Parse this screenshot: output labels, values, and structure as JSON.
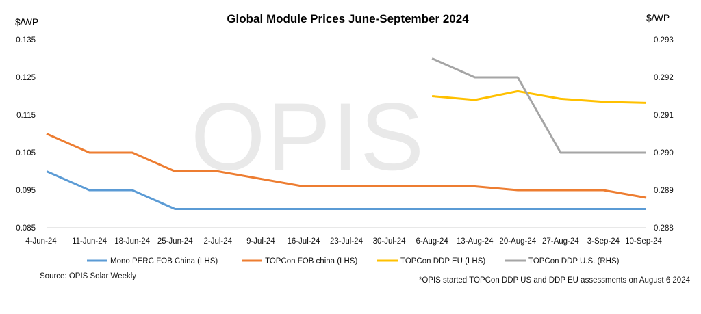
{
  "chart_data": {
    "type": "line",
    "title": "Global Module Prices  June-September 2024",
    "y_left_label": "$/WP",
    "y_right_label": "$/WP",
    "watermark": "OPIS",
    "source": "Source: OPIS Solar Weekly",
    "footnote": "*OPIS started TOPCon DDP US and DDP EU assessments on August 6 2024",
    "grid": false,
    "legend_position": "bottom",
    "categories": [
      "4-Jun-24",
      "11-Jun-24",
      "18-Jun-24",
      "25-Jun-24",
      "2-Jul-24",
      "9-Jul-24",
      "16-Jul-24",
      "23-Jul-24",
      "30-Jul-24",
      "6-Aug-24",
      "13-Aug-24",
      "20-Aug-24",
      "27-Aug-24",
      "3-Sep-24",
      "10-Sep-24"
    ],
    "ylim_left": [
      0.085,
      0.135
    ],
    "ylim_right": [
      0.288,
      0.293
    ],
    "yticks_left": [
      "0.085",
      "0.095",
      "0.105",
      "0.115",
      "0.125",
      "0.135"
    ],
    "yticks_right": [
      "0.288",
      "0.289",
      "0.290",
      "0.291",
      "0.292",
      "0.293"
    ],
    "series": [
      {
        "name": "Mono PERC FOB China (LHS)",
        "axis": "left",
        "color": "#5B9BD5",
        "values": [
          0.1,
          0.095,
          0.095,
          0.09,
          0.09,
          0.09,
          0.09,
          0.09,
          0.09,
          0.09,
          0.09,
          0.09,
          0.09,
          0.09,
          0.09
        ]
      },
      {
        "name": "TOPCon FOB china (LHS)",
        "axis": "left",
        "color": "#ED7D31",
        "values": [
          0.11,
          0.105,
          0.105,
          0.1,
          0.1,
          0.098,
          0.096,
          0.096,
          0.096,
          0.096,
          0.096,
          0.095,
          0.095,
          0.095,
          0.093
        ]
      },
      {
        "name": "TOPCon DDP EU (LHS)",
        "axis": "left",
        "color": "#FFC000",
        "values": [
          null,
          null,
          null,
          null,
          null,
          null,
          null,
          null,
          null,
          0.12,
          0.119,
          0.1213,
          0.1193,
          0.1185,
          0.1182
        ]
      },
      {
        "name": "TOPCon DDP U.S. (RHS)",
        "axis": "right",
        "color": "#A5A5A5",
        "values": [
          null,
          null,
          null,
          null,
          null,
          null,
          null,
          null,
          null,
          0.2925,
          0.292,
          0.292,
          0.29,
          0.29,
          0.29
        ]
      }
    ]
  }
}
